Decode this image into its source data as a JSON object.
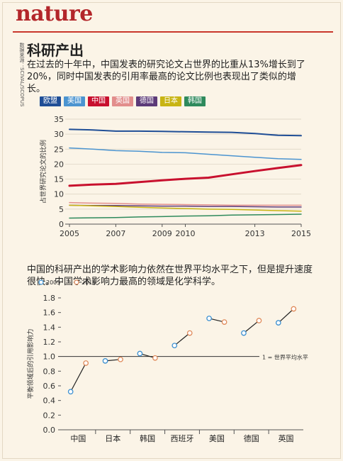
{
  "brand": "nature",
  "source_note": "数据来源：SCIVAL/SCOPUS",
  "section_title": "科研产出",
  "intro_text": "在过去的十年中，中国发表的研究论文占世界的比重从13%增长到了20%，同时中国发表的引用率最高的论文比例也表现出了类似的增长。",
  "sub_intro_text": "中国的科研产出的学术影响力依然在世界平均水平之下，但是提升速度很快。中国学术影响力最高的领域是化学科学。",
  "colors": {
    "background": "#fbf4e7",
    "accent": "#b3262a",
    "eu": "#1f4e96",
    "us": "#4b94d0",
    "china": "#c8102e",
    "uk": "#e28e8c",
    "germany": "#5c3a78",
    "japan": "#c8b413",
    "korea": "#2e8a5c",
    "y2005": "#3b8fd0",
    "y2015": "#e08a5a"
  },
  "chart_data": [
    {
      "type": "line",
      "title": "",
      "ylabel": "占世界研究论文的比例",
      "x": [
        2005,
        2006,
        2007,
        2008,
        2009,
        2010,
        2011,
        2012,
        2013,
        2014,
        2015
      ],
      "xticks": [
        "2005",
        "2007",
        "2009",
        "2010",
        "2013",
        "2015"
      ],
      "ylim": [
        0,
        35
      ],
      "yticks": [
        0,
        5,
        10,
        15,
        20,
        25,
        30,
        35
      ],
      "grid": true,
      "legend_position": "top-left",
      "series": [
        {
          "name": "欧盟",
          "color": "#1f4e96",
          "width": 2,
          "values": [
            31.6,
            31.4,
            31.0,
            31.0,
            30.9,
            30.8,
            30.7,
            30.6,
            30.2,
            29.6,
            29.5
          ]
        },
        {
          "name": "美国",
          "color": "#4b94d0",
          "width": 1.5,
          "values": [
            25.4,
            25.0,
            24.5,
            24.3,
            23.9,
            23.8,
            23.3,
            22.8,
            22.3,
            21.8,
            21.6
          ]
        },
        {
          "name": "中国",
          "color": "#c8102e",
          "width": 3,
          "values": [
            12.8,
            13.2,
            13.4,
            14.0,
            14.6,
            15.1,
            15.5,
            16.6,
            17.7,
            18.7,
            19.7
          ]
        },
        {
          "name": "英国",
          "color": "#e28e8c",
          "width": 1.5,
          "values": [
            7.2,
            7.0,
            6.9,
            6.7,
            6.6,
            6.5,
            6.4,
            6.3,
            6.3,
            6.3,
            6.3
          ]
        },
        {
          "name": "德国",
          "color": "#5c3a78",
          "width": 1.5,
          "values": [
            6.3,
            6.2,
            6.2,
            6.1,
            6.0,
            6.0,
            5.9,
            5.9,
            5.8,
            5.7,
            5.7
          ]
        },
        {
          "name": "日本",
          "color": "#c8b413",
          "width": 1.5,
          "values": [
            6.3,
            6.1,
            5.9,
            5.6,
            5.4,
            5.2,
            5.0,
            4.9,
            4.7,
            4.5,
            4.3
          ]
        },
        {
          "name": "韩国",
          "color": "#2e8a5c",
          "width": 1.5,
          "values": [
            2.0,
            2.1,
            2.2,
            2.4,
            2.5,
            2.7,
            2.8,
            3.0,
            3.1,
            3.2,
            3.3
          ]
        }
      ]
    },
    {
      "type": "scatter",
      "title": "",
      "ylabel": "平衡领域后的引用影响力",
      "categories": [
        "中国",
        "日本",
        "韩国",
        "西班牙",
        "美国",
        "德国",
        "英国"
      ],
      "ylim": [
        0,
        1.8
      ],
      "yticks": [
        0,
        0.2,
        0.4,
        0.6,
        0.8,
        1.0,
        1.2,
        1.4,
        1.6,
        1.8
      ],
      "reference_line": {
        "value": 1.0,
        "label": "1 = 世界平均水平"
      },
      "legend_position": "top-left",
      "series": [
        {
          "name": "2005",
          "color": "#3b8fd0",
          "values": [
            0.52,
            0.94,
            1.04,
            1.15,
            1.52,
            1.32,
            1.46
          ]
        },
        {
          "name": "2015",
          "color": "#e08a5a",
          "values": [
            0.91,
            0.96,
            0.98,
            1.32,
            1.47,
            1.49,
            1.65
          ]
        }
      ]
    }
  ]
}
